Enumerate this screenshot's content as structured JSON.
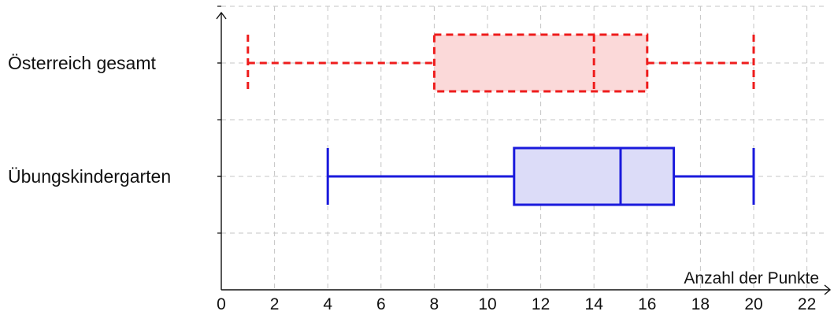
{
  "chart_data": {
    "type": "boxplot",
    "xlabel": "Anzahl der Punkte",
    "xlim": [
      0,
      23
    ],
    "xticks": [
      0,
      2,
      4,
      6,
      8,
      10,
      12,
      14,
      16,
      18,
      20,
      22
    ],
    "xtick_labels": [
      "0",
      "2",
      "4",
      "6",
      "8",
      "10",
      "12",
      "14",
      "16",
      "18",
      "20",
      "22"
    ],
    "grid": true,
    "series": [
      {
        "name": "Österreich gesamt",
        "min": 1,
        "q1": 8,
        "median": 14,
        "q3": 16,
        "max": 20,
        "stroke": "#ee1c1c",
        "fill": "#fbd9d9",
        "dashed": true
      },
      {
        "name": "Übungskindergarten",
        "min": 4,
        "q1": 11,
        "median": 15,
        "q3": 17,
        "max": 20,
        "stroke": "#1a1adc",
        "fill": "#dcdcf8",
        "dashed": false
      }
    ]
  }
}
